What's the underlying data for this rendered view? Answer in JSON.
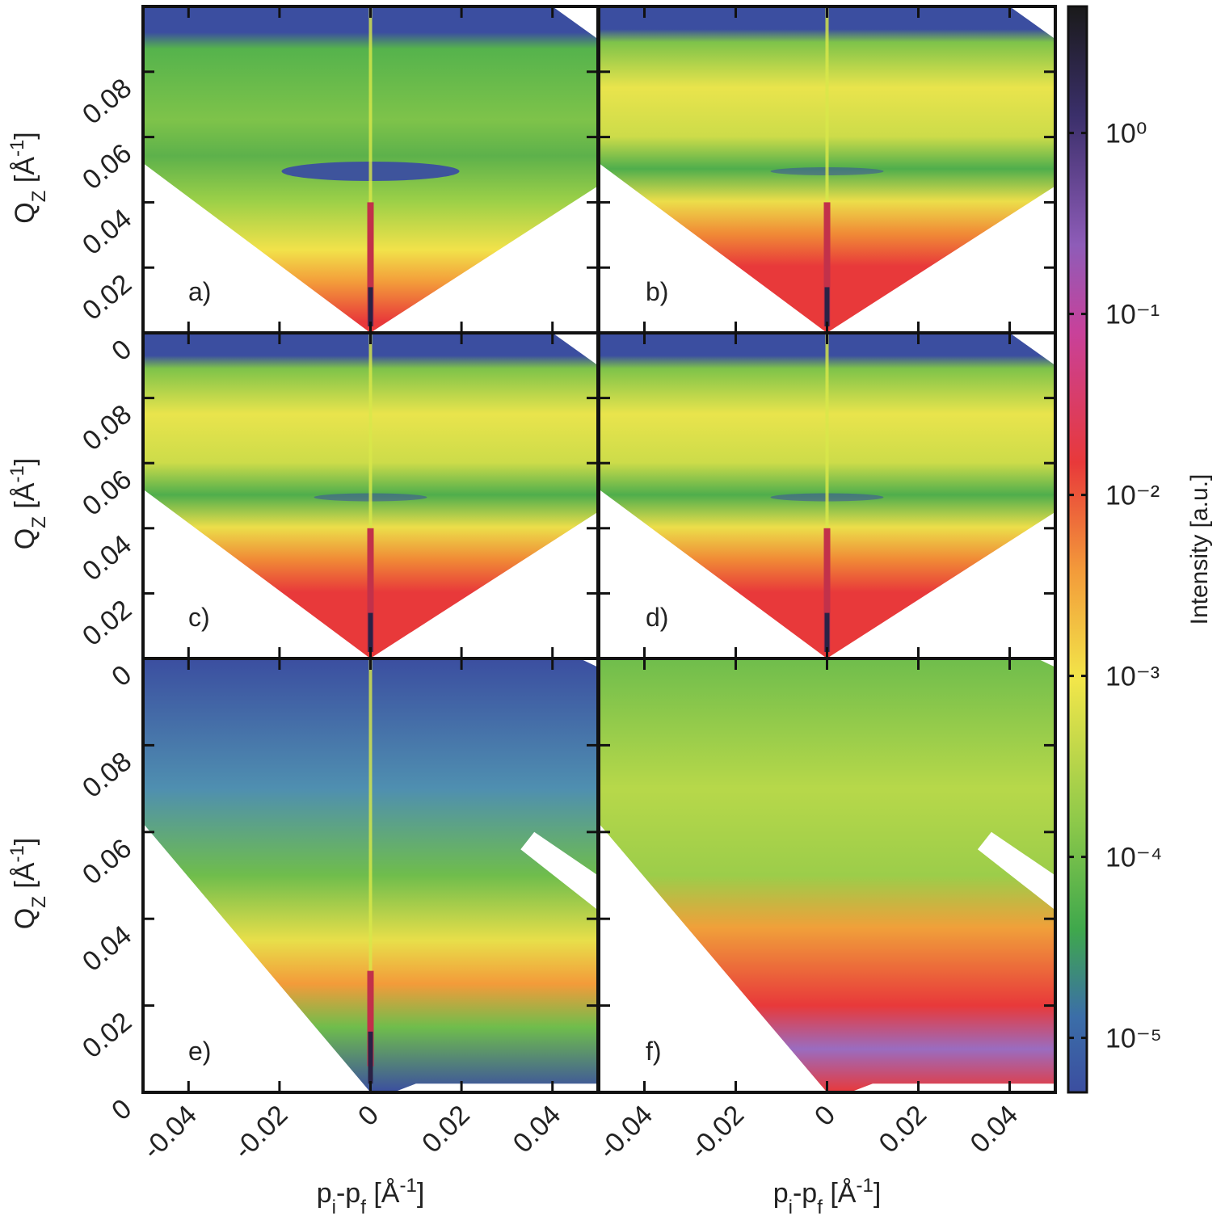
{
  "chart_data": {
    "type": "heatmap",
    "xlim": [
      -0.05,
      0.05
    ],
    "xticks": [
      -0.04,
      -0.02,
      0,
      0.02,
      0.04
    ],
    "ylim": [
      0,
      0.1
    ],
    "yticks": [
      0,
      0.02,
      0.04,
      0.06,
      0.08
    ],
    "x_label": [
      {
        "text": "p"
      },
      {
        "text": "i",
        "shift": "sub"
      },
      {
        "text": "-p"
      },
      {
        "text": "f",
        "shift": "sub"
      },
      {
        "text": " [Å"
      },
      {
        "text": "-1",
        "shift": "super"
      },
      {
        "text": "]"
      }
    ],
    "y_label": [
      {
        "text": "Q"
      },
      {
        "text": "Z",
        "shift": "sub"
      },
      {
        "text": " [Å"
      },
      {
        "text": "-1",
        "shift": "super"
      },
      {
        "text": "]"
      }
    ],
    "panels": [
      {
        "label": "a)"
      },
      {
        "label": "b)"
      },
      {
        "label": "c)"
      },
      {
        "label": "d)"
      },
      {
        "label": "e)"
      },
      {
        "label": "f)"
      }
    ],
    "colorbar": {
      "label": "Intensity [a.u.]",
      "log": true,
      "zlim": [
        5e-06,
        5
      ],
      "ticks": [
        {
          "value": 1,
          "label": "10⁰"
        },
        {
          "value": 0.1,
          "label": "10⁻¹"
        },
        {
          "value": 0.01,
          "label": "10⁻²"
        },
        {
          "value": 0.001,
          "label": "10⁻³"
        },
        {
          "value": 0.0001,
          "label": "10⁻⁴"
        },
        {
          "value": 1e-05,
          "label": "10⁻⁵"
        }
      ]
    }
  }
}
